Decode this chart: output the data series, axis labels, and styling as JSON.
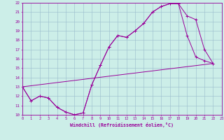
{
  "xlabel": "Windchill (Refroidissement éolien,°C)",
  "bg_color": "#cceee8",
  "grid_color": "#99bbcc",
  "line_color": "#990099",
  "xlim": [
    0,
    23
  ],
  "ylim": [
    10,
    22
  ],
  "xticks": [
    0,
    1,
    2,
    3,
    4,
    5,
    6,
    7,
    8,
    9,
    10,
    11,
    12,
    13,
    14,
    15,
    16,
    17,
    18,
    19,
    20,
    21,
    22,
    23
  ],
  "yticks": [
    10,
    11,
    12,
    13,
    14,
    15,
    16,
    17,
    18,
    19,
    20,
    21,
    22
  ],
  "line1_x": [
    0,
    1,
    2,
    3,
    4,
    5,
    6,
    7,
    8,
    9,
    10,
    11,
    12,
    13,
    14,
    15,
    16,
    17,
    18,
    19,
    20,
    21,
    22
  ],
  "line1_y": [
    13.0,
    11.5,
    12.0,
    11.8,
    10.8,
    10.3,
    10.0,
    10.2,
    13.2,
    15.3,
    17.3,
    18.5,
    18.3,
    19.0,
    19.8,
    21.0,
    21.6,
    21.9,
    21.9,
    20.6,
    20.2,
    17.0,
    15.5
  ],
  "line2_x": [
    0,
    1,
    2,
    3,
    4,
    5,
    6,
    7,
    8,
    9,
    10,
    11,
    12,
    13,
    14,
    15,
    16,
    17,
    18,
    19,
    20,
    21,
    22
  ],
  "line2_y": [
    13.0,
    11.5,
    12.0,
    11.8,
    10.8,
    10.3,
    10.0,
    10.2,
    13.2,
    15.3,
    17.3,
    18.5,
    18.3,
    19.0,
    19.8,
    21.0,
    21.6,
    21.9,
    21.9,
    18.5,
    16.2,
    15.8,
    15.5
  ],
  "line3_x": [
    0,
    22
  ],
  "line3_y": [
    13.0,
    15.5
  ]
}
